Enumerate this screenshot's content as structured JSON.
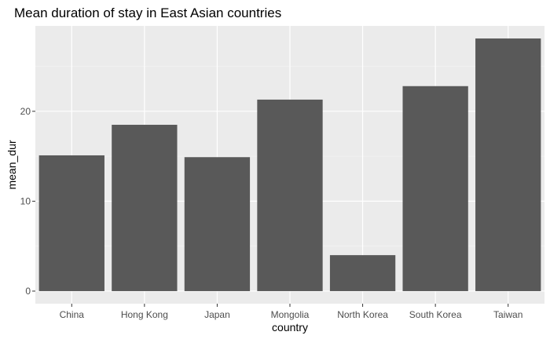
{
  "chart_data": {
    "type": "bar",
    "title": "Mean duration of stay in East Asian countries",
    "xlabel": "country",
    "ylabel": "mean_dur",
    "categories": [
      "China",
      "Hong Kong",
      "Japan",
      "Mongolia",
      "North Korea",
      "South Korea",
      "Taiwan"
    ],
    "values": [
      15.1,
      18.5,
      14.9,
      21.3,
      4.0,
      22.8,
      28.1
    ],
    "ylim": [
      -1.4,
      29.5
    ],
    "yticks": [
      0,
      10,
      20
    ],
    "grid": true,
    "colors": {
      "bar": "#595959",
      "panel": "#ebebeb",
      "grid_major": "#ffffff",
      "grid_minor": "#f5f5f5",
      "tick": "#333333"
    }
  }
}
